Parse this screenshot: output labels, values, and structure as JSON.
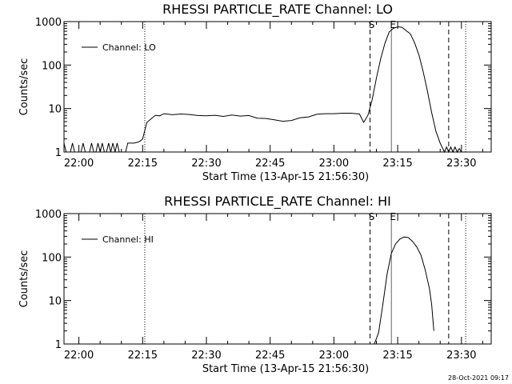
{
  "footer": {
    "timestamp": "28-Oct-2021 09:17"
  },
  "chart_data": [
    {
      "type": "line",
      "title": "RHESSI PARTICLE_RATE Channel: LO",
      "xlabel": "Start Time (13-Apr-15 21:56:30)",
      "ylabel": "Counts/sec",
      "yscale": "log",
      "ylim": [
        1,
        1000
      ],
      "xlim": [
        "21:56:30",
        "23:37:00"
      ],
      "x_ticks": [
        "22:00",
        "22:15",
        "22:30",
        "22:45",
        "23:00",
        "23:15",
        "23:30"
      ],
      "y_ticks": [
        "1",
        "10",
        "100",
        "1000"
      ],
      "legend": {
        "position": "top-left",
        "entries": [
          "Channel: LO"
        ]
      },
      "series": [
        {
          "name": "Channel: LO",
          "x": [
            "21:56:30",
            "21:57:00",
            "21:57:30",
            "21:58:00",
            "21:58:30",
            "21:59:00",
            "21:59:30",
            "22:00:00",
            "22:00:30",
            "22:01:00",
            "22:01:30",
            "22:02:00",
            "22:02:30",
            "22:03:00",
            "22:03:30",
            "22:04:00",
            "22:04:30",
            "22:05:00",
            "22:05:30",
            "22:06:00",
            "22:06:30",
            "22:07:00",
            "22:07:30",
            "22:08:00",
            "22:08:30",
            "22:09:00",
            "22:09:30",
            "22:10:00",
            "22:10:30",
            "22:11:00",
            "22:11:30",
            "22:12:00",
            "22:13:00",
            "22:14:00",
            "22:14:30",
            "22:15:00",
            "22:16:00",
            "22:17:00",
            "22:18:00",
            "22:19:00",
            "22:20:00",
            "22:22:00",
            "22:24:00",
            "22:26:00",
            "22:28:00",
            "22:30:00",
            "22:32:00",
            "22:34:00",
            "22:36:00",
            "22:38:00",
            "22:40:00",
            "22:42:00",
            "22:44:00",
            "22:46:00",
            "22:48:00",
            "22:50:00",
            "22:52:00",
            "22:54:00",
            "22:56:00",
            "22:58:00",
            "23:00:00",
            "23:02:00",
            "23:04:00",
            "23:06:00",
            "23:07:00",
            "23:08:00",
            "23:09:00",
            "23:10:00",
            "23:11:00",
            "23:12:00",
            "23:13:00",
            "23:14:00",
            "23:15:00",
            "23:16:00",
            "23:18:00",
            "23:19:00",
            "23:20:00",
            "23:21:00",
            "23:22:00",
            "23:23:00",
            "23:24:00",
            "23:25:00",
            "23:26:00",
            "23:26:30",
            "23:27:00",
            "23:27:30",
            "23:28:00",
            "23:28:30",
            "23:29:00",
            "23:29:30",
            "23:30:00",
            "23:30:30"
          ],
          "values": [
            1.6,
            1,
            1,
            1,
            1.6,
            1,
            1,
            1,
            1,
            1.6,
            1,
            1,
            1,
            1.6,
            1,
            1,
            1.6,
            1,
            1.6,
            1,
            1,
            1.6,
            1,
            1.6,
            1,
            1.6,
            1,
            1,
            1,
            1,
            1.6,
            1.6,
            1.6,
            1.7,
            1.8,
            2,
            4.8,
            5.8,
            7.0,
            6.8,
            7.6,
            7.2,
            7.5,
            7.3,
            6.9,
            6.8,
            7.0,
            6.6,
            7.1,
            6.7,
            6.9,
            6.0,
            5.9,
            5.5,
            5.1,
            5.3,
            6.1,
            6.4,
            7.4,
            7.6,
            7.6,
            7.8,
            7.8,
            7.5,
            4.8,
            7.0,
            16,
            50,
            140,
            320,
            580,
            700,
            760,
            740,
            520,
            320,
            170,
            70,
            25,
            8,
            3,
            1.6,
            1,
            1.3,
            1,
            1.3,
            1,
            1.3,
            1,
            1.2,
            1,
            1
          ]
        }
      ],
      "markers": {
        "dashed": [
          "23:08:30",
          "23:27:00"
        ],
        "dotted": [
          "22:15:30",
          "23:31:00"
        ],
        "labels": [
          {
            "text": "S",
            "x": "23:08:30"
          },
          {
            "text": "E",
            "x": "23:13:30"
          }
        ]
      },
      "grid": false
    },
    {
      "type": "line",
      "title": "RHESSI PARTICLE_RATE Channel: HI",
      "xlabel": "Start Time (13-Apr-15 21:56:30)",
      "ylabel": "Counts/sec",
      "yscale": "log",
      "ylim": [
        1,
        1000
      ],
      "xlim": [
        "21:56:30",
        "23:37:00"
      ],
      "x_ticks": [
        "22:00",
        "22:15",
        "22:30",
        "22:45",
        "23:00",
        "23:15",
        "23:30"
      ],
      "y_ticks": [
        "1",
        "10",
        "100",
        "1000"
      ],
      "legend": {
        "position": "top-left",
        "entries": [
          "Channel: HI"
        ]
      },
      "series": [
        {
          "name": "Channel: HI",
          "x": [
            "23:09:30",
            "23:10:30",
            "23:11:30",
            "23:12:30",
            "23:13:30",
            "23:14:30",
            "23:15:30",
            "23:16:30",
            "23:17:30",
            "23:18:30",
            "23:19:30",
            "23:20:30",
            "23:21:30",
            "23:22:30",
            "23:23:00",
            "23:23:30"
          ],
          "values": [
            1,
            1.8,
            8,
            40,
            120,
            200,
            260,
            290,
            280,
            230,
            170,
            110,
            50,
            18,
            8,
            2
          ]
        }
      ],
      "markers": {
        "dashed": [
          "23:08:30",
          "23:27:00"
        ],
        "dotted": [
          "22:15:30",
          "23:31:00"
        ],
        "labels": [
          {
            "text": "S",
            "x": "23:08:30"
          },
          {
            "text": "E",
            "x": "23:13:30"
          }
        ]
      },
      "grid": false
    }
  ]
}
